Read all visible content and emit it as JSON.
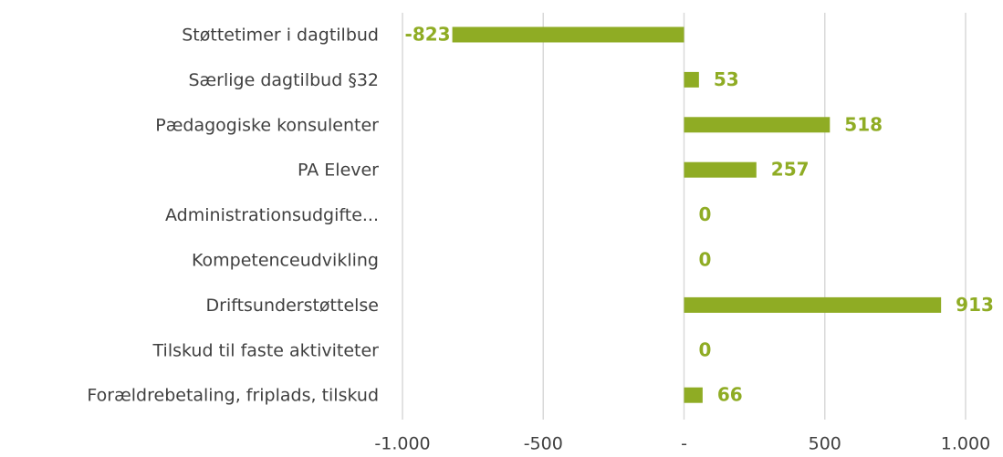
{
  "chart_data": {
    "type": "bar",
    "orientation": "horizontal",
    "categories": [
      "Støttetimer i dagtilbud",
      "Særlige dagtilbud §32",
      "Pædagogiske konsulenter",
      "PA Elever",
      "Administrationsudgifte...",
      "Kompetenceudvikling",
      "Driftsunderstøttelse",
      "Tilskud til faste aktiviteter",
      "Forældrebetaling, friplads, tilskud"
    ],
    "values": [
      -823,
      53,
      518,
      257,
      0,
      0,
      913,
      0,
      66
    ],
    "color": "#8fac24",
    "xlim": [
      -1000,
      1000
    ],
    "xticks": [
      {
        "value": -1000,
        "label": "-1.000"
      },
      -500,
      {
        "value": 0,
        "label": "-"
      },
      500,
      {
        "value": 1000,
        "label": "1.000"
      }
    ],
    "grid": true
  }
}
